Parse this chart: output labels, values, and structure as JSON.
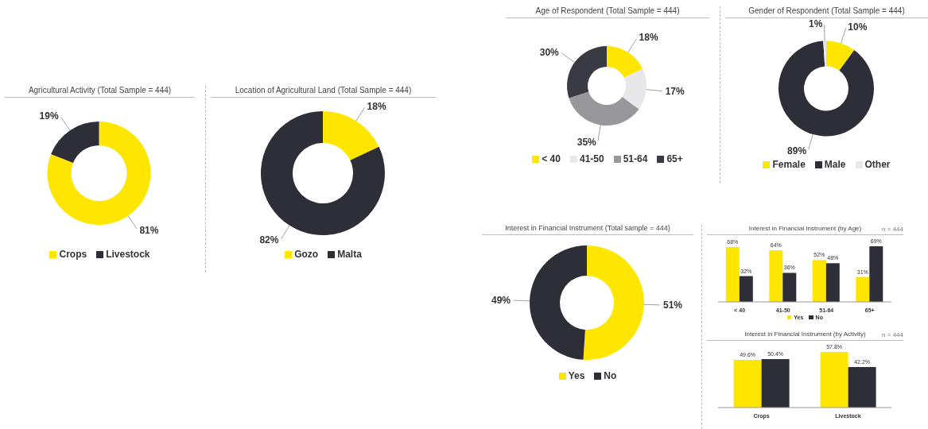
{
  "chart_data": [
    {
      "type": "donut",
      "title": "Agricultural Activity (Total Sample = 444)",
      "categories": [
        "Crops",
        "Livestock"
      ],
      "values": [
        81,
        19
      ],
      "colors": [
        "#ffe600",
        "#2e2e38"
      ],
      "value_labels": [
        "81%",
        "19%"
      ],
      "legend": "bottom"
    },
    {
      "type": "donut",
      "title": "Location of Agricultural Land (Total Sample = 444)",
      "categories": [
        "Gozo",
        "Malta"
      ],
      "values": [
        18,
        82
      ],
      "colors": [
        "#ffe600",
        "#2e2e38"
      ],
      "value_labels": [
        "18%",
        "82%"
      ],
      "legend": "bottom"
    },
    {
      "type": "donut",
      "title": "Age of Respondent (Total Sample = 444)",
      "categories": [
        "< 40",
        "41-50",
        "51-64",
        "65+"
      ],
      "values": [
        18,
        17,
        35,
        30
      ],
      "colors": [
        "#ffe600",
        "#e8e8ea",
        "#98989c",
        "#3a3a44"
      ],
      "value_labels": [
        "18%",
        "17%",
        "35%",
        "30%"
      ],
      "legend": "bottom"
    },
    {
      "type": "donut",
      "title": "Gender of Respondent (Total Sample = 444)",
      "categories": [
        "Female",
        "Male",
        "Other"
      ],
      "values": [
        10,
        89,
        1
      ],
      "colors": [
        "#ffe600",
        "#2e2e38",
        "#e8e8ea"
      ],
      "value_labels": [
        "10%",
        "89%",
        "1%"
      ],
      "legend": "bottom"
    },
    {
      "type": "donut",
      "title": "Interest in Financial Instrument (Total sample = 444)",
      "categories": [
        "Yes",
        "No"
      ],
      "values": [
        51,
        49
      ],
      "colors": [
        "#ffe600",
        "#2e2e38"
      ],
      "value_labels": [
        "51%",
        "49%"
      ],
      "legend": "bottom"
    },
    {
      "type": "bar",
      "title": "Interest in Financial Instrument (by Age)",
      "annotations": [
        "n = 444"
      ],
      "categories": [
        "< 40",
        "41-50",
        "51-64",
        "65+"
      ],
      "legend": "bottom",
      "series": [
        {
          "name": "Yes",
          "color": "#ffe600",
          "values": [
            68,
            64,
            52,
            31
          ],
          "value_labels": [
            "68%",
            "64%",
            "52%",
            "31%"
          ]
        },
        {
          "name": "No",
          "color": "#2e2e38",
          "values": [
            32,
            36,
            48,
            69
          ],
          "value_labels": [
            "32%",
            "36%",
            "48%",
            "69%"
          ]
        }
      ]
    },
    {
      "type": "bar",
      "title": "Interest in Financial Instrument (by Activity)",
      "annotations": [
        "n = 444"
      ],
      "categories": [
        "Crops",
        "Livestock"
      ],
      "series": [
        {
          "color": "#ffe600",
          "values": [
            49.6,
            57.8
          ],
          "value_labels": [
            "49.6%",
            "57.8%"
          ]
        },
        {
          "color": "#2e2e38",
          "values": [
            50.4,
            42.2
          ],
          "value_labels": [
            "50.4%",
            "42.2%"
          ]
        }
      ]
    }
  ]
}
